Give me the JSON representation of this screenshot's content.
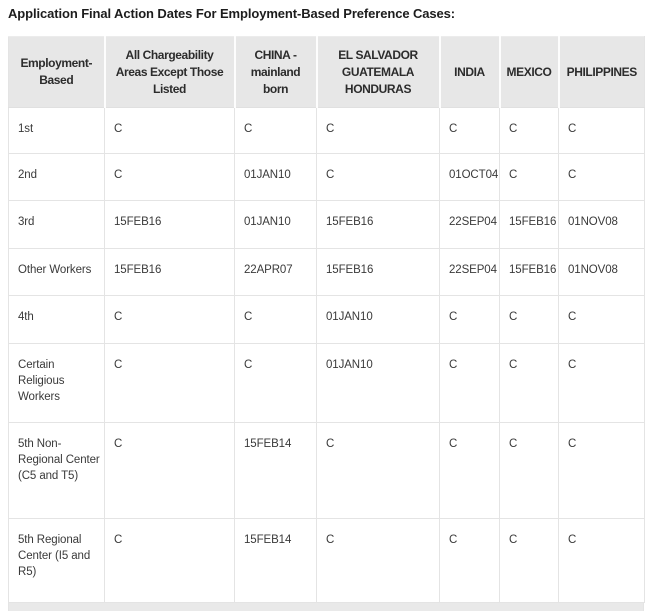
{
  "title": "Application Final Action Dates For Employment-Based Preference Cases:",
  "table": {
    "columns": [
      {
        "label": "Employment-Based"
      },
      {
        "label": "All Chargeability Areas Except Those Listed"
      },
      {
        "label": "CHINA - mainland born"
      },
      {
        "label": "EL SALVADOR GUATEMALA HONDURAS"
      },
      {
        "label": "INDIA"
      },
      {
        "label": "MEXICO"
      },
      {
        "label": "PHILIPPINES"
      }
    ],
    "rows": [
      {
        "category": "1st",
        "values": [
          "C",
          "C",
          "C",
          "C",
          "C",
          "C"
        ]
      },
      {
        "category": "2nd",
        "values": [
          "C",
          "01JAN10",
          "C",
          "01OCT04",
          "C",
          "C"
        ]
      },
      {
        "category": "3rd",
        "values": [
          "15FEB16",
          "01JAN10",
          "15FEB16",
          "22SEP04",
          "15FEB16",
          "01NOV08"
        ]
      },
      {
        "category": "Other Workers",
        "values": [
          "15FEB16",
          "22APR07",
          "15FEB16",
          "22SEP04",
          "15FEB16",
          "01NOV08"
        ]
      },
      {
        "category": "4th",
        "values": [
          "C",
          "C",
          "01JAN10",
          "C",
          "C",
          "C"
        ]
      },
      {
        "category": "Certain Religious Workers",
        "values": [
          "C",
          "C",
          "01JAN10",
          "C",
          "C",
          "C"
        ]
      },
      {
        "category": "5th Non-Regional Center (C5 and T5)",
        "values": [
          "C",
          "15FEB14",
          "C",
          "C",
          "C",
          "C"
        ]
      },
      {
        "category": "5th Regional Center (I5 and R5)",
        "values": [
          "C",
          "15FEB14",
          "C",
          "C",
          "C",
          "C"
        ]
      }
    ]
  },
  "colors": {
    "header_bg": "#e7e7e7",
    "body_border": "#e4e4e4",
    "title_text": "#1d1d1d",
    "cell_text": "#3a3a3a"
  }
}
